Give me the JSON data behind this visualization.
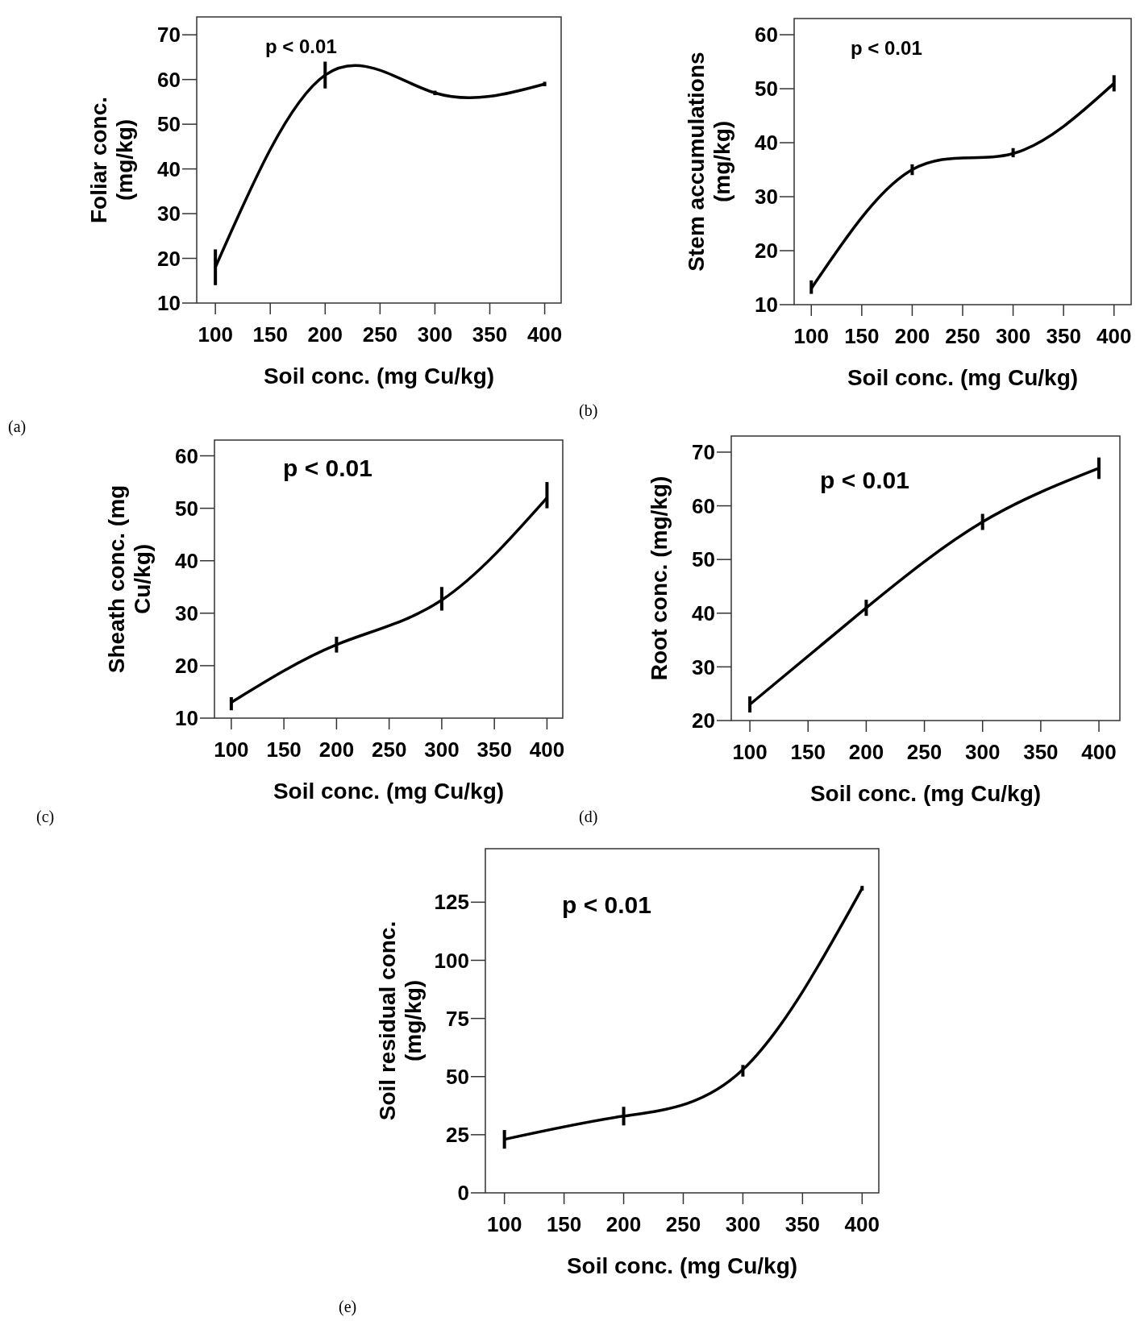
{
  "chart_data": [
    {
      "type": "line",
      "xlabel": "Soil conc. (mg Cu/kg)",
      "ylabel": "Foliar conc. (mg/kg)",
      "annotations": [
        "p < 0.01",
        "(a)"
      ],
      "x": [
        100,
        200,
        300,
        400
      ],
      "series": [
        {
          "color": "#000000",
          "values": [
            18,
            61,
            57,
            59
          ],
          "errors": [
            [
              14,
              22
            ],
            [
              58,
              64
            ],
            [
              56.5,
              57.5
            ],
            [
              58.5,
              59.5
            ]
          ]
        }
      ],
      "xlim": [
        83,
        415
      ],
      "xticks": [
        100,
        150,
        200,
        250,
        300,
        350,
        400
      ],
      "ylim": [
        10,
        74
      ],
      "yticks": [
        10,
        20,
        30,
        40,
        50,
        60,
        70
      ],
      "marker": "none",
      "line_style": "solid"
    },
    {
      "type": "line",
      "xlabel": "Soil conc. (mg Cu/kg)",
      "ylabel": "Stem accumulations (mg/kg)",
      "annotations": [
        "p < 0.01",
        "(b)"
      ],
      "x": [
        100,
        200,
        300,
        400
      ],
      "series": [
        {
          "color": "#000000",
          "values": [
            13,
            35,
            38,
            51
          ],
          "errors": [
            [
              12,
              14.5
            ],
            [
              34,
              36
            ],
            [
              37.3,
              39
            ],
            [
              49.5,
              52.5
            ]
          ]
        }
      ],
      "xlim": [
        83,
        417
      ],
      "xticks": [
        100,
        150,
        200,
        250,
        300,
        350,
        400
      ],
      "ylim": [
        10,
        63
      ],
      "yticks": [
        10,
        20,
        30,
        40,
        50,
        60
      ],
      "marker": "none",
      "line_style": "solid"
    },
    {
      "type": "line",
      "xlabel": "Soil conc. (mg Cu/kg)",
      "ylabel": "Sheath conc. (mg Cu/kg)",
      "annotations": [
        "p < 0.01",
        "(c)"
      ],
      "x": [
        100,
        200,
        300,
        400
      ],
      "series": [
        {
          "color": "#000000",
          "values": [
            13,
            24,
            32.5,
            52
          ],
          "errors": [
            [
              11.5,
              14
            ],
            [
              22.5,
              25.5
            ],
            [
              30.5,
              35
            ],
            [
              50,
              55
            ]
          ]
        }
      ],
      "xlim": [
        84,
        415
      ],
      "xticks": [
        100,
        150,
        200,
        250,
        300,
        350,
        400
      ],
      "ylim": [
        10,
        63
      ],
      "yticks": [
        10,
        20,
        30,
        40,
        50,
        60
      ],
      "marker": "none",
      "line_style": "solid"
    },
    {
      "type": "line",
      "xlabel": "Soil conc. (mg Cu/kg)",
      "ylabel": "Root conc. (mg/kg)",
      "annotations": [
        "p < 0.01",
        "(d)"
      ],
      "x": [
        100,
        200,
        300,
        400
      ],
      "series": [
        {
          "color": "#000000",
          "values": [
            23,
            41,
            57,
            67
          ],
          "errors": [
            [
              21.5,
              24.5
            ],
            [
              39.5,
              42.5
            ],
            [
              55.5,
              58.5
            ],
            [
              65,
              69
            ]
          ]
        }
      ],
      "xlim": [
        84,
        418
      ],
      "xticks": [
        100,
        150,
        200,
        250,
        300,
        350,
        400
      ],
      "ylim": [
        20,
        73
      ],
      "yticks": [
        20,
        30,
        40,
        50,
        60,
        70
      ],
      "marker": "none",
      "line_style": "solid"
    },
    {
      "type": "line",
      "xlabel": "Soil conc. (mg Cu/kg)",
      "ylabel": "Soil residual conc. (mg/kg)",
      "annotations": [
        "p < 0.01",
        "(e)"
      ],
      "x": [
        100,
        200,
        300,
        400
      ],
      "series": [
        {
          "color": "#000000",
          "values": [
            23,
            33,
            53,
            131
          ],
          "errors": [
            [
              19,
              27
            ],
            [
              29,
              37
            ],
            [
              50,
              55
            ],
            [
              130,
              132
            ]
          ]
        }
      ],
      "xlim": [
        84,
        414
      ],
      "xticks": [
        100,
        150,
        200,
        250,
        300,
        350,
        400
      ],
      "ylim": [
        0,
        148
      ],
      "yticks": [
        0,
        25,
        50,
        75,
        100,
        125
      ],
      "marker": "none",
      "line_style": "solid"
    }
  ]
}
